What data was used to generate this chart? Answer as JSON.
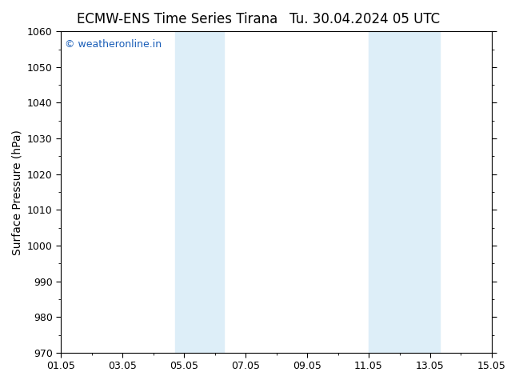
{
  "title_left": "ECMW-ENS Time Series Tirana",
  "title_right": "Tu. 30.04.2024 05 UTC",
  "ylabel": "Surface Pressure (hPa)",
  "ylim": [
    970,
    1060
  ],
  "yticks": [
    970,
    980,
    990,
    1000,
    1010,
    1020,
    1030,
    1040,
    1050,
    1060
  ],
  "xlim_start": 0,
  "xlim_end": 14,
  "xtick_labels": [
    "01.05",
    "03.05",
    "05.05",
    "07.05",
    "09.05",
    "11.05",
    "13.05",
    "15.05"
  ],
  "xtick_positions": [
    0,
    2,
    4,
    6,
    8,
    10,
    12,
    14
  ],
  "shaded_bands": [
    {
      "xmin": 3.7,
      "xmax": 5.3
    },
    {
      "xmin": 10.0,
      "xmax": 12.3
    }
  ],
  "band_color": "#ddeef8",
  "background_color": "#ffffff",
  "plot_bg_color": "#ffffff",
  "watermark_text": "© weatheronline.in",
  "watermark_color": "#1a5eb8",
  "title_fontsize": 12,
  "axis_label_fontsize": 10,
  "tick_fontsize": 9,
  "watermark_fontsize": 9,
  "border_color": "#000000",
  "spine_linewidth": 0.8,
  "minor_tick_count": 1
}
